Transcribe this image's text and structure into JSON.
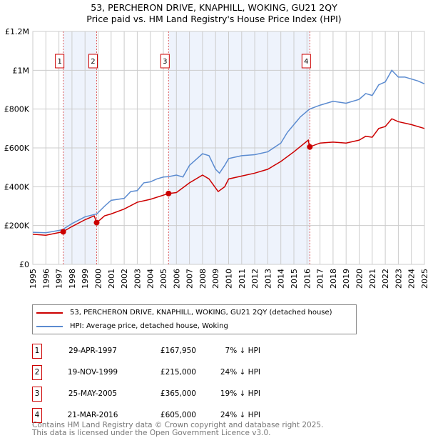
{
  "title": "53, PERCHERON DRIVE, KNAPHILL, WOKING, GU21 2QY",
  "subtitle": "Price paid vs. HM Land Registry's House Price Index (HPI)",
  "chart_data": {
    "type": "line",
    "title": "53, PERCHERON DRIVE, KNAPHILL, WOKING, GU21 2QY",
    "ylim": [
      0,
      1200000
    ],
    "xlim": [
      1995,
      2025
    ],
    "yticks": [
      {
        "v": 0,
        "label": "£0"
      },
      {
        "v": 200000,
        "label": "£200K"
      },
      {
        "v": 400000,
        "label": "£400K"
      },
      {
        "v": 600000,
        "label": "£600K"
      },
      {
        "v": 800000,
        "label": "£800K"
      },
      {
        "v": 1000000,
        "label": "£1M"
      },
      {
        "v": 1200000,
        "label": "£1.2M"
      }
    ],
    "xticks": [
      "1995",
      "1996",
      "1997",
      "1998",
      "1999",
      "2000",
      "2001",
      "2002",
      "2003",
      "2004",
      "2005",
      "2006",
      "2007",
      "2008",
      "2009",
      "2010",
      "2011",
      "2012",
      "2013",
      "2014",
      "2015",
      "2016",
      "2017",
      "2018",
      "2019",
      "2020",
      "2021",
      "2022",
      "2023",
      "2024",
      "2025"
    ],
    "series": [
      {
        "name": "53, PERCHERON DRIVE, KNAPHILL, WOKING, GU21 2QY (detached house)",
        "color": "#cc0000",
        "x": [
          1995,
          1996,
          1997.3,
          1998,
          1999,
          1999.7,
          1999.9,
          2000.5,
          2001,
          2002,
          2003,
          2004,
          2005.4,
          2006,
          2007,
          2008,
          2008.5,
          2009.2,
          2009.7,
          2010,
          2011,
          2012,
          2013,
          2014,
          2015,
          2016.1,
          2016.2,
          2017,
          2018,
          2019,
          2020,
          2020.5,
          2021,
          2021.5,
          2022,
          2022.5,
          2023,
          2024,
          2025
        ],
        "y": [
          155000,
          150000,
          168000,
          195000,
          230000,
          250000,
          215000,
          250000,
          260000,
          285000,
          320000,
          335000,
          365000,
          370000,
          420000,
          460000,
          440000,
          375000,
          400000,
          440000,
          455000,
          470000,
          490000,
          530000,
          580000,
          640000,
          605000,
          625000,
          630000,
          625000,
          640000,
          660000,
          655000,
          700000,
          710000,
          750000,
          735000,
          720000,
          700000
        ]
      },
      {
        "name": "HPI: Average price, detached house, Woking",
        "color": "#5b8bd0",
        "x": [
          1995,
          1996,
          1997,
          1997.3,
          1998,
          1999,
          1999.9,
          2000.5,
          2001,
          2002,
          2002.5,
          2003,
          2003.5,
          2004,
          2004.5,
          2005,
          2005.4,
          2006,
          2006.5,
          2007,
          2007.5,
          2008,
          2008.5,
          2009,
          2009.3,
          2009.7,
          2010,
          2011,
          2012,
          2013,
          2014,
          2014.5,
          2015,
          2015.5,
          2016.2,
          2017,
          2018,
          2019,
          2020,
          2020.5,
          2021,
          2021.5,
          2022,
          2022.5,
          2023,
          2023.5,
          2024,
          2024.5,
          2025
        ],
        "y": [
          165000,
          163000,
          175000,
          180000,
          210000,
          245000,
          260000,
          300000,
          330000,
          340000,
          375000,
          380000,
          420000,
          425000,
          440000,
          450000,
          452000,
          460000,
          450000,
          510000,
          540000,
          570000,
          560000,
          490000,
          470000,
          510000,
          545000,
          560000,
          565000,
          580000,
          625000,
          680000,
          720000,
          760000,
          800000,
          820000,
          840000,
          830000,
          850000,
          880000,
          870000,
          925000,
          940000,
          1000000,
          965000,
          965000,
          955000,
          945000,
          930000
        ]
      }
    ],
    "sales": [
      {
        "label": "1",
        "x": 1997.33,
        "y": 167950
      },
      {
        "label": "2",
        "x": 1999.89,
        "y": 215000
      },
      {
        "label": "3",
        "x": 2005.4,
        "y": 365000
      },
      {
        "label": "4",
        "x": 2016.22,
        "y": 605000
      }
    ],
    "legend": "below"
  },
  "table": [
    {
      "num": "1",
      "date": "29-APR-1997",
      "price": "£167,950",
      "delta": "7% ↓ HPI"
    },
    {
      "num": "2",
      "date": "19-NOV-1999",
      "price": "£215,000",
      "delta": "24% ↓ HPI"
    },
    {
      "num": "3",
      "date": "25-MAY-2005",
      "price": "£365,000",
      "delta": "19% ↓ HPI"
    },
    {
      "num": "4",
      "date": "21-MAR-2016",
      "price": "£605,000",
      "delta": "24% ↓ HPI"
    }
  ],
  "footer": [
    "Contains HM Land Registry data © Crown copyright and database right 2025.",
    "This data is licensed under the Open Government Licence v3.0."
  ]
}
